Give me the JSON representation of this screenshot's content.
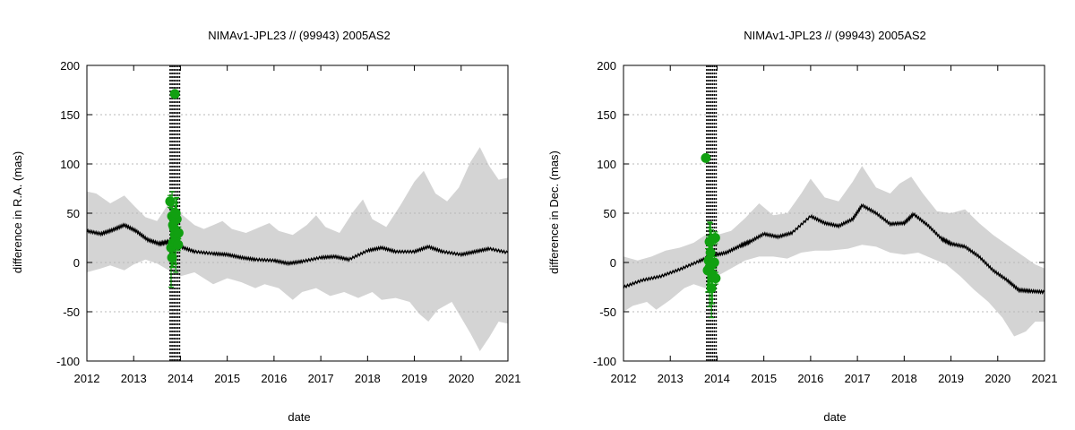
{
  "colors": {
    "band": "#d4d4d4",
    "line": "#000000",
    "points": "#11a011",
    "grid": "#b8b8b8",
    "frame": "#000000"
  },
  "chart_data": [
    {
      "type": "line",
      "title": "NIMAv1-JPL23 // (99943) 2005AS2",
      "xlabel": "date",
      "ylabel": "difference in R.A. (mas)",
      "xlim": [
        2012,
        2021
      ],
      "ylim": [
        -100,
        200
      ],
      "xticks": [
        "2012",
        "2013",
        "2014",
        "2015",
        "2016",
        "2017",
        "2018",
        "2019",
        "2020",
        "2021"
      ],
      "yticks": [
        "-100",
        "-50",
        "0",
        "50",
        "100",
        "150",
        "200"
      ],
      "grid": "horizontal dotted",
      "model_line": [
        [
          2012.0,
          32
        ],
        [
          2012.3,
          29
        ],
        [
          2012.55,
          33
        ],
        [
          2012.8,
          38
        ],
        [
          2013.05,
          32
        ],
        [
          2013.3,
          23
        ],
        [
          2013.55,
          19
        ],
        [
          2013.75,
          21
        ],
        [
          2014.0,
          16
        ],
        [
          2014.3,
          11
        ],
        [
          2014.7,
          9
        ],
        [
          2015.0,
          8
        ],
        [
          2015.3,
          5
        ],
        [
          2015.6,
          3
        ],
        [
          2016.0,
          2
        ],
        [
          2016.3,
          -1
        ],
        [
          2016.6,
          1
        ],
        [
          2017.0,
          5
        ],
        [
          2017.3,
          6
        ],
        [
          2017.6,
          3
        ],
        [
          2018.0,
          12
        ],
        [
          2018.3,
          15
        ],
        [
          2018.6,
          11
        ],
        [
          2019.0,
          11
        ],
        [
          2019.3,
          16
        ],
        [
          2019.6,
          11
        ],
        [
          2020.0,
          8
        ],
        [
          2020.3,
          11
        ],
        [
          2020.6,
          14
        ],
        [
          2021.0,
          10
        ]
      ],
      "band_upper": [
        [
          2012.0,
          72
        ],
        [
          2012.2,
          70
        ],
        [
          2012.5,
          60
        ],
        [
          2012.8,
          68
        ],
        [
          2013.0,
          58
        ],
        [
          2013.25,
          46
        ],
        [
          2013.5,
          42
        ],
        [
          2013.75,
          60
        ],
        [
          2014.0,
          50
        ],
        [
          2014.3,
          38
        ],
        [
          2014.5,
          34
        ],
        [
          2014.7,
          38
        ],
        [
          2014.9,
          42
        ],
        [
          2015.1,
          34
        ],
        [
          2015.4,
          30
        ],
        [
          2015.7,
          36
        ],
        [
          2015.9,
          40
        ],
        [
          2016.1,
          32
        ],
        [
          2016.4,
          28
        ],
        [
          2016.7,
          38
        ],
        [
          2016.9,
          48
        ],
        [
          2017.1,
          36
        ],
        [
          2017.4,
          30
        ],
        [
          2017.7,
          52
        ],
        [
          2017.9,
          64
        ],
        [
          2018.1,
          44
        ],
        [
          2018.4,
          36
        ],
        [
          2018.7,
          58
        ],
        [
          2019.0,
          82
        ],
        [
          2019.2,
          93
        ],
        [
          2019.45,
          70
        ],
        [
          2019.7,
          62
        ],
        [
          2019.95,
          76
        ],
        [
          2020.2,
          102
        ],
        [
          2020.4,
          117
        ],
        [
          2020.6,
          98
        ],
        [
          2020.8,
          84
        ],
        [
          2021.0,
          86
        ]
      ],
      "band_lower": [
        [
          2012.0,
          -10
        ],
        [
          2012.3,
          -6
        ],
        [
          2012.5,
          -3
        ],
        [
          2012.8,
          -8
        ],
        [
          2013.0,
          -2
        ],
        [
          2013.25,
          3
        ],
        [
          2013.5,
          -1
        ],
        [
          2013.75,
          -8
        ],
        [
          2014.0,
          -14
        ],
        [
          2014.3,
          -10
        ],
        [
          2014.5,
          -16
        ],
        [
          2014.7,
          -22
        ],
        [
          2015.0,
          -16
        ],
        [
          2015.3,
          -20
        ],
        [
          2015.6,
          -26
        ],
        [
          2015.8,
          -22
        ],
        [
          2016.1,
          -26
        ],
        [
          2016.4,
          -38
        ],
        [
          2016.6,
          -30
        ],
        [
          2016.9,
          -26
        ],
        [
          2017.2,
          -34
        ],
        [
          2017.5,
          -30
        ],
        [
          2017.8,
          -36
        ],
        [
          2018.1,
          -30
        ],
        [
          2018.3,
          -38
        ],
        [
          2018.6,
          -36
        ],
        [
          2018.9,
          -40
        ],
        [
          2019.1,
          -52
        ],
        [
          2019.3,
          -60
        ],
        [
          2019.5,
          -48
        ],
        [
          2019.8,
          -40
        ],
        [
          2020.0,
          -56
        ],
        [
          2020.2,
          -72
        ],
        [
          2020.4,
          -90
        ],
        [
          2020.6,
          -76
        ],
        [
          2020.8,
          -60
        ],
        [
          2021.0,
          -62
        ]
      ],
      "vertical_lines": [
        2013.78,
        2013.82,
        2013.86,
        2013.9,
        2013.94,
        2013.98
      ],
      "observations": [
        {
          "x": 2013.88,
          "y": 171,
          "err": 3
        },
        {
          "x": 2013.78,
          "y": 62,
          "err": 6
        },
        {
          "x": 2013.82,
          "y": 47,
          "err": 25
        },
        {
          "x": 2013.84,
          "y": 38,
          "err": 8
        },
        {
          "x": 2013.86,
          "y": 35,
          "err": 20
        },
        {
          "x": 2013.88,
          "y": 28,
          "err": 30
        },
        {
          "x": 2013.9,
          "y": 25,
          "err": 35
        },
        {
          "x": 2013.84,
          "y": 20,
          "err": 25
        },
        {
          "x": 2013.8,
          "y": 15,
          "err": 40
        },
        {
          "x": 2013.82,
          "y": 5,
          "err": 10
        },
        {
          "x": 2013.92,
          "y": 44,
          "err": 22
        },
        {
          "x": 2013.96,
          "y": 30,
          "err": 6
        },
        {
          "x": 2013.95,
          "y": 18,
          "err": 6
        },
        {
          "x": 2013.9,
          "y": 50,
          "err": 15
        }
      ]
    },
    {
      "type": "line",
      "title": "NIMAv1-JPL23 // (99943) 2005AS2",
      "xlabel": "date",
      "ylabel": "difference in Dec. (mas)",
      "xlim": [
        2012,
        2021
      ],
      "ylim": [
        -100,
        200
      ],
      "xticks": [
        "2012",
        "2013",
        "2014",
        "2015",
        "2016",
        "2017",
        "2018",
        "2019",
        "2020",
        "2021"
      ],
      "yticks": [
        "-100",
        "-50",
        "0",
        "50",
        "100",
        "150",
        "200"
      ],
      "grid": "horizontal dotted",
      "model_line": [
        [
          2012.0,
          -25
        ],
        [
          2012.4,
          -18
        ],
        [
          2012.8,
          -14
        ],
        [
          2013.2,
          -7
        ],
        [
          2013.6,
          1
        ],
        [
          2013.9,
          7
        ],
        [
          2014.2,
          10
        ],
        [
          2014.5,
          17
        ],
        [
          2014.7,
          21
        ],
        [
          2015.0,
          29
        ],
        [
          2015.3,
          26
        ],
        [
          2015.6,
          30
        ],
        [
          2016.0,
          47
        ],
        [
          2016.3,
          40
        ],
        [
          2016.6,
          37
        ],
        [
          2016.9,
          44
        ],
        [
          2017.1,
          58
        ],
        [
          2017.4,
          50
        ],
        [
          2017.7,
          39
        ],
        [
          2018.0,
          40
        ],
        [
          2018.2,
          49
        ],
        [
          2018.5,
          38
        ],
        [
          2018.8,
          24
        ],
        [
          2019.0,
          19
        ],
        [
          2019.3,
          16
        ],
        [
          2019.6,
          6
        ],
        [
          2019.9,
          -8
        ],
        [
          2020.2,
          -18
        ],
        [
          2020.45,
          -28
        ],
        [
          2020.7,
          -29
        ],
        [
          2021.0,
          -30
        ]
      ],
      "band_upper": [
        [
          2012.0,
          6
        ],
        [
          2012.3,
          2
        ],
        [
          2012.6,
          6
        ],
        [
          2012.9,
          12
        ],
        [
          2013.2,
          15
        ],
        [
          2013.5,
          20
        ],
        [
          2013.75,
          28
        ],
        [
          2014.0,
          28
        ],
        [
          2014.3,
          32
        ],
        [
          2014.6,
          45
        ],
        [
          2014.9,
          60
        ],
        [
          2015.2,
          48
        ],
        [
          2015.5,
          50
        ],
        [
          2015.8,
          70
        ],
        [
          2016.0,
          85
        ],
        [
          2016.3,
          66
        ],
        [
          2016.6,
          62
        ],
        [
          2016.9,
          82
        ],
        [
          2017.1,
          98
        ],
        [
          2017.4,
          76
        ],
        [
          2017.7,
          70
        ],
        [
          2017.9,
          80
        ],
        [
          2018.15,
          87
        ],
        [
          2018.4,
          70
        ],
        [
          2018.7,
          52
        ],
        [
          2019.0,
          50
        ],
        [
          2019.3,
          54
        ],
        [
          2019.6,
          40
        ],
        [
          2019.9,
          28
        ],
        [
          2020.2,
          18
        ],
        [
          2020.5,
          8
        ],
        [
          2020.8,
          -2
        ],
        [
          2021.0,
          -6
        ]
      ],
      "band_lower": [
        [
          2012.0,
          -50
        ],
        [
          2012.2,
          -44
        ],
        [
          2012.5,
          -40
        ],
        [
          2012.7,
          -48
        ],
        [
          2013.0,
          -38
        ],
        [
          2013.3,
          -26
        ],
        [
          2013.5,
          -22
        ],
        [
          2013.75,
          -26
        ],
        [
          2014.0,
          -14
        ],
        [
          2014.3,
          -6
        ],
        [
          2014.6,
          2
        ],
        [
          2014.9,
          6
        ],
        [
          2015.2,
          6
        ],
        [
          2015.5,
          4
        ],
        [
          2015.8,
          10
        ],
        [
          2016.1,
          12
        ],
        [
          2016.4,
          12
        ],
        [
          2016.8,
          14
        ],
        [
          2017.1,
          18
        ],
        [
          2017.4,
          16
        ],
        [
          2017.7,
          10
        ],
        [
          2018.0,
          8
        ],
        [
          2018.3,
          10
        ],
        [
          2018.6,
          4
        ],
        [
          2018.9,
          -2
        ],
        [
          2019.2,
          -14
        ],
        [
          2019.5,
          -28
        ],
        [
          2019.8,
          -40
        ],
        [
          2020.1,
          -56
        ],
        [
          2020.35,
          -75
        ],
        [
          2020.6,
          -70
        ],
        [
          2020.8,
          -60
        ],
        [
          2021.0,
          -60
        ]
      ],
      "vertical_lines": [
        2013.78,
        2013.82,
        2013.86,
        2013.9,
        2013.94,
        2013.98
      ],
      "observations": [
        {
          "x": 2013.76,
          "y": 106,
          "err": 3
        },
        {
          "x": 2013.96,
          "y": 25,
          "err": 6
        },
        {
          "x": 2013.84,
          "y": 21,
          "err": 20
        },
        {
          "x": 2013.86,
          "y": 10,
          "err": 30
        },
        {
          "x": 2013.82,
          "y": 2,
          "err": 25
        },
        {
          "x": 2013.88,
          "y": -2,
          "err": 35
        },
        {
          "x": 2013.8,
          "y": -8,
          "err": 22
        },
        {
          "x": 2013.9,
          "y": -12,
          "err": 30
        },
        {
          "x": 2013.94,
          "y": 0,
          "err": 6
        },
        {
          "x": 2013.97,
          "y": -16,
          "err": 6
        },
        {
          "x": 2013.88,
          "y": -26,
          "err": 30
        },
        {
          "x": 2013.84,
          "y": -5,
          "err": 40
        }
      ]
    }
  ]
}
